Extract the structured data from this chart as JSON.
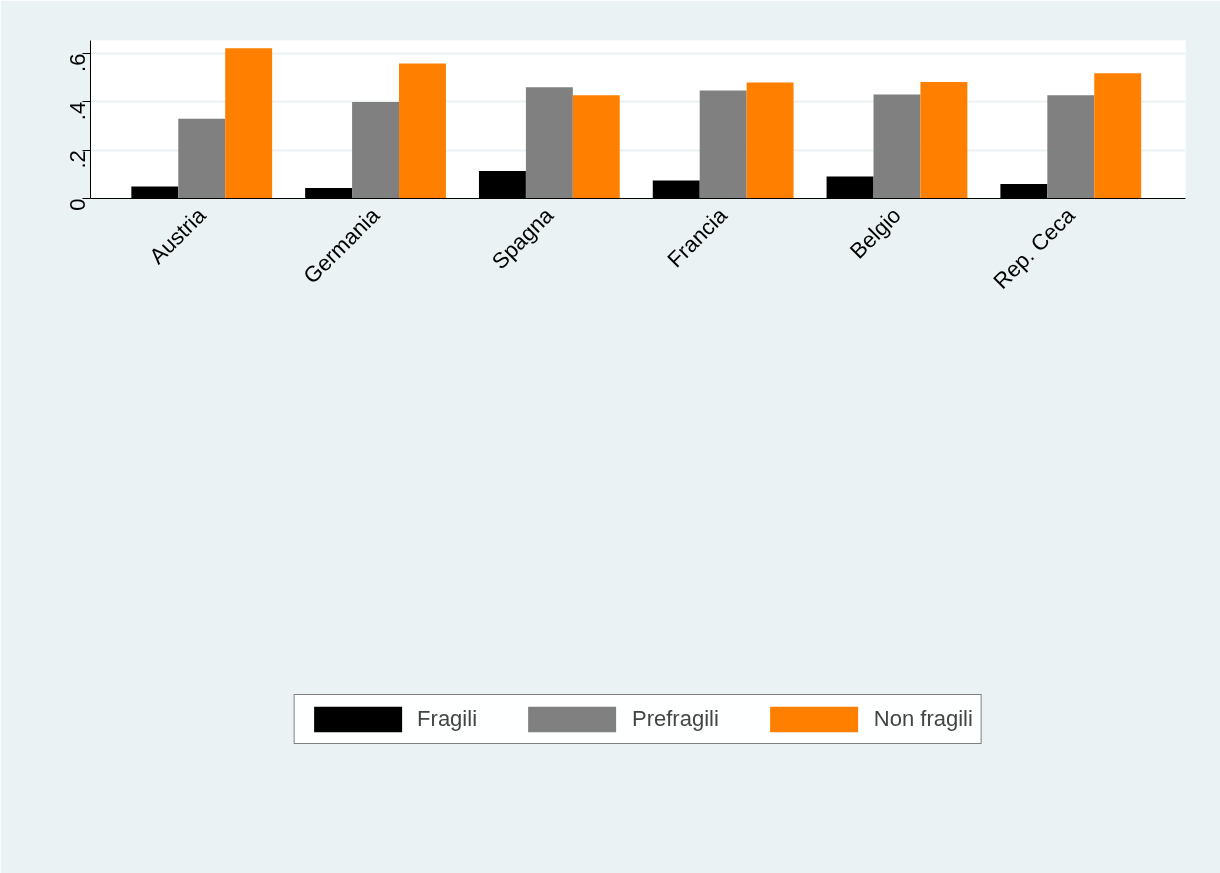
{
  "chart_data": {
    "type": "bar",
    "categories": [
      "Austria",
      "Germania",
      "Spagna",
      "Francia",
      "Belgio",
      "Rep. Ceca"
    ],
    "series": [
      {
        "name": "Fragili",
        "color": "#000000",
        "values": [
          0.05,
          0.043,
          0.114,
          0.074,
          0.091,
          0.06
        ]
      },
      {
        "name": "Prefragili",
        "color": "#808080",
        "values": [
          0.33,
          0.399,
          0.461,
          0.447,
          0.43,
          0.427
        ]
      },
      {
        "name": "Non fragili",
        "color": "#ff8000",
        "values": [
          0.622,
          0.559,
          0.427,
          0.48,
          0.482,
          0.518
        ]
      }
    ],
    "ylim": [
      0,
      0.654
    ],
    "yticks": [
      {
        "value": 0,
        "label": "0"
      },
      {
        "value": 0.2,
        "label": ".2"
      },
      {
        "value": 0.4,
        "label": ".4"
      },
      {
        "value": 0.6,
        "label": ".6"
      }
    ],
    "grid": "y",
    "legend": "bottom"
  }
}
